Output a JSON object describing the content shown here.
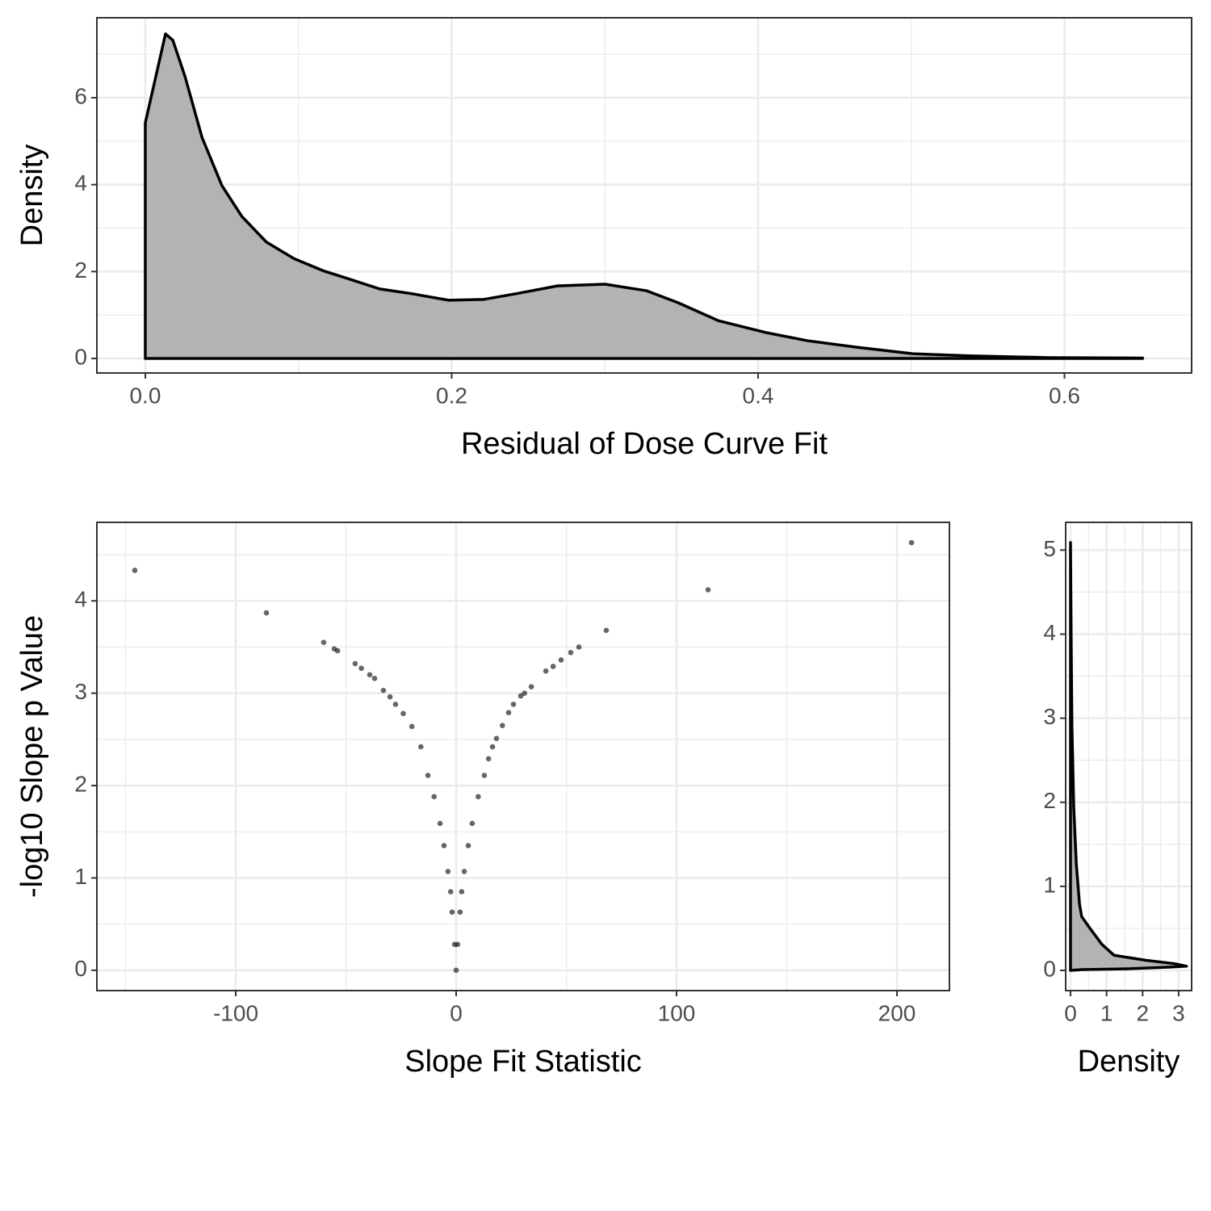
{
  "chart_data": [
    {
      "type": "area",
      "x_label": "Residual of Dose Curve Fit",
      "y_label": "Density",
      "color": "#b3b3b3",
      "line_color": "#000000",
      "x": [
        0,
        0,
        0.0132,
        0.018,
        0.026,
        0.037,
        0.05,
        0.063,
        0.079,
        0.097,
        0.116,
        0.132,
        0.153,
        0.174,
        0.198,
        0.221,
        0.242,
        0.269,
        0.3,
        0.327,
        0.348,
        0.374,
        0.406,
        0.432,
        0.464,
        0.501,
        0.538,
        0.59,
        0.651
      ],
      "values": [
        0,
        5.42,
        7.47,
        7.32,
        6.48,
        5.09,
        3.98,
        3.27,
        2.68,
        2.3,
        2.02,
        1.84,
        1.6,
        1.49,
        1.34,
        1.36,
        1.49,
        1.67,
        1.71,
        1.56,
        1.28,
        0.87,
        0.59,
        0.41,
        0.26,
        0.11,
        0.06,
        0.02,
        0.01
      ],
      "xlim": [
        -0.0316,
        0.683
      ],
      "ylim": [
        -0.334,
        7.84
      ],
      "xticks": [
        {
          "value": 0,
          "label": "0.0"
        },
        0.2,
        0.4,
        0.6
      ],
      "yticks": [
        0,
        2,
        4,
        6
      ],
      "x_minor_grid": [
        0.1,
        0.3,
        0.5
      ],
      "y_minor_grid": [
        1,
        3,
        5,
        7
      ],
      "grid": true
    },
    {
      "type": "scatter",
      "x_label": "Slope Fit Statistic",
      "y_label": "-log10 Slope p Value",
      "color": "#000000",
      "alpha": 0.6,
      "x": [
        -145.8,
        -86.1,
        -60.1,
        -55.3,
        -53.8,
        -45.8,
        -43,
        -39.2,
        -37,
        -33,
        -30,
        -27.5,
        -24,
        -20.1,
        -16,
        -12.8,
        -10,
        -7.3,
        -5.5,
        -3.7,
        -2.5,
        -1.8,
        -0.7,
        0,
        0.7,
        1.8,
        2.5,
        3.7,
        5.5,
        7.3,
        10,
        12.8,
        14.7,
        16.5,
        18.3,
        21,
        23.8,
        26,
        29.3,
        31,
        34.1,
        40.7,
        44,
        47.6,
        52,
        55.7,
        68.1,
        114.3,
        206.6
      ],
      "values": [
        4.33,
        3.87,
        3.55,
        3.48,
        3.46,
        3.32,
        3.27,
        3.2,
        3.16,
        3.03,
        2.96,
        2.88,
        2.78,
        2.64,
        2.42,
        2.11,
        1.88,
        1.59,
        1.35,
        1.07,
        0.85,
        0.63,
        0.28,
        0,
        0.28,
        0.63,
        0.85,
        1.07,
        1.35,
        1.59,
        1.88,
        2.11,
        2.29,
        2.42,
        2.51,
        2.65,
        2.79,
        2.88,
        2.97,
        3.0,
        3.07,
        3.24,
        3.29,
        3.36,
        3.44,
        3.5,
        3.68,
        4.12,
        4.63
      ],
      "xlim": [
        -163,
        223.8
      ],
      "ylim": [
        -0.22,
        4.85
      ],
      "xticks": [
        -100,
        0,
        100,
        200
      ],
      "yticks": [
        0,
        1,
        2,
        3,
        4
      ],
      "x_minor_grid": [
        -150,
        -50,
        50,
        150
      ],
      "y_minor_grid": [
        0.5,
        1.5,
        2.5,
        3.5,
        4.5
      ],
      "grid": true
    },
    {
      "type": "area",
      "orientation": "horizontal",
      "x_label": "Density",
      "color": "#b3b3b3",
      "line_color": "#000000",
      "y": [
        0,
        0.01,
        0.02,
        0.04,
        0.05,
        0.08,
        0.12,
        0.18,
        0.31,
        0.5,
        0.64,
        0.79,
        1.27,
        1.94,
        2.9,
        3.86,
        5.09
      ],
      "values": [
        0,
        0.31,
        1.66,
        2.77,
        3.22,
        2.89,
        2.1,
        1.21,
        0.87,
        0.54,
        0.31,
        0.25,
        0.16,
        0.09,
        0.04,
        0.02,
        0
      ],
      "xlim": [
        -0.134,
        3.36
      ],
      "ylim": [
        -0.24,
        5.33
      ],
      "xticks": [
        0,
        1,
        2,
        3
      ],
      "yticks": [
        0,
        1,
        2,
        3,
        4,
        5
      ],
      "x_minor_grid": [
        0.5,
        1.5,
        2.5
      ],
      "y_minor_grid": [
        0.5,
        1.5,
        2.5,
        3.5,
        4.5
      ],
      "grid": true
    }
  ]
}
